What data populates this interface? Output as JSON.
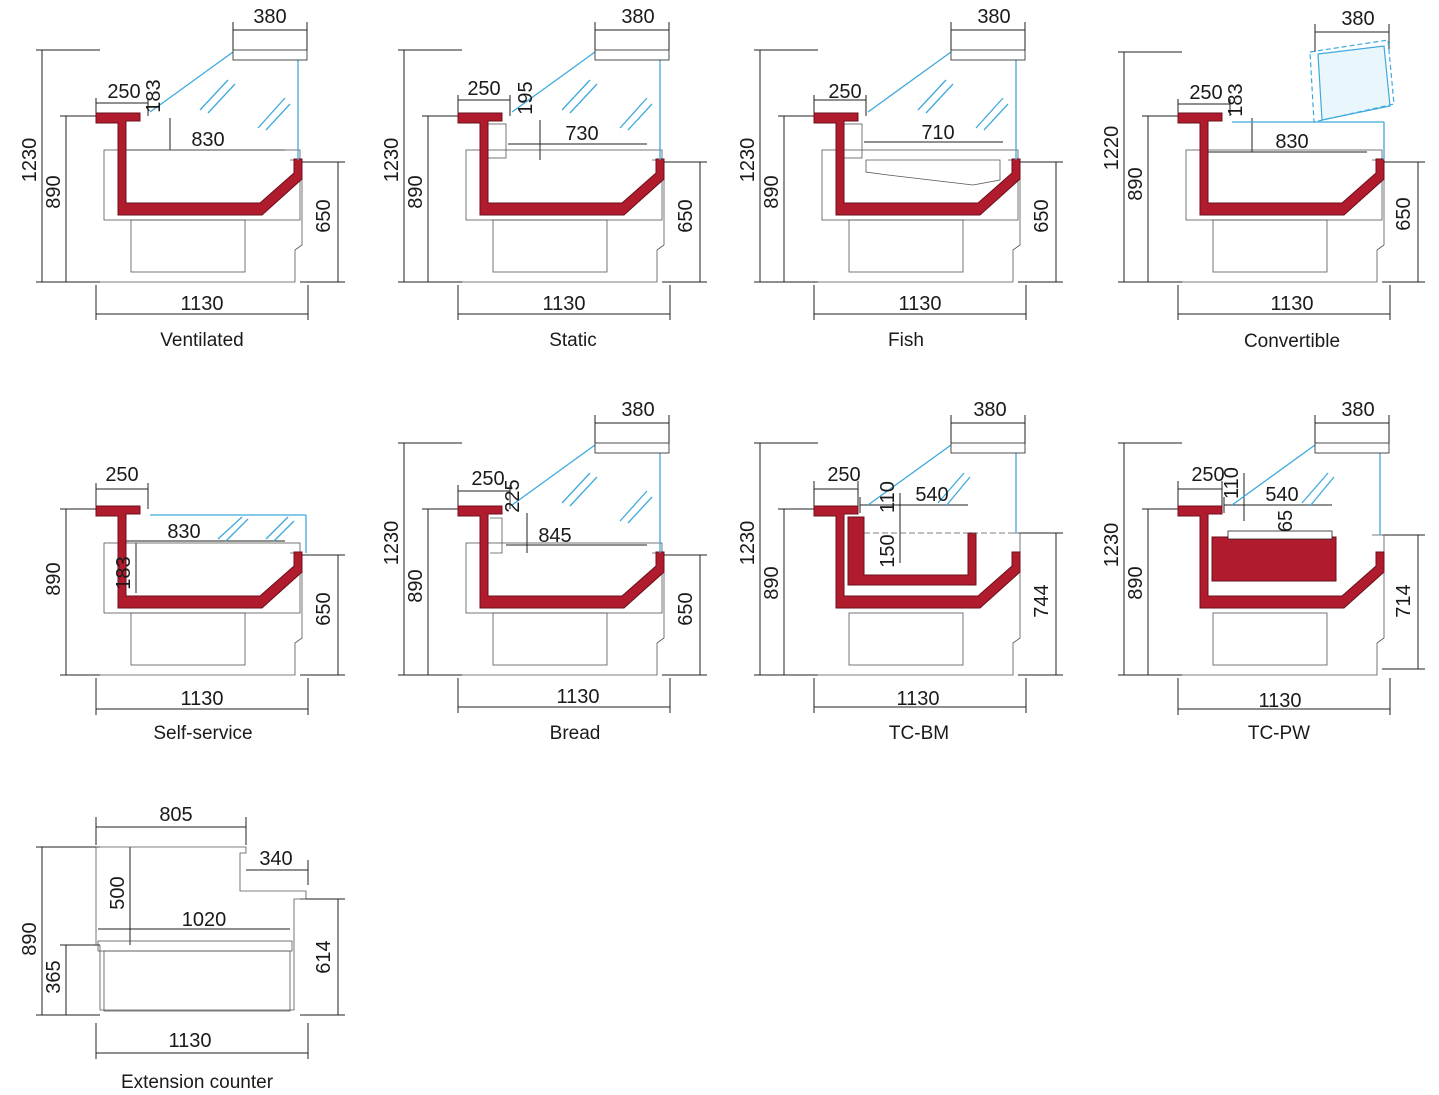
{
  "colors": {
    "tub": "#b01c2e",
    "glass": "#3fa9dc",
    "line": "#222222"
  },
  "panels": [
    {
      "caption": "Ventilated",
      "dims": {
        "top": "380",
        "shelf": "250",
        "height_a": "183",
        "inner": "830",
        "total_h": "1230",
        "counter_h": "890",
        "rear_h": "650",
        "width": "1130"
      }
    },
    {
      "caption": "Static",
      "dims": {
        "top": "380",
        "shelf": "250",
        "height_a": "195",
        "inner": "730",
        "total_h": "1230",
        "counter_h": "890",
        "rear_h": "650",
        "width": "1130"
      }
    },
    {
      "caption": "Fish",
      "dims": {
        "top": "380",
        "shelf": "250",
        "inner": "710",
        "total_h": "1230",
        "counter_h": "890",
        "rear_h": "650",
        "width": "1130"
      }
    },
    {
      "caption": "Convertible",
      "dims": {
        "top": "380",
        "shelf": "250",
        "height_a": "183",
        "inner": "830",
        "total_h": "1220",
        "counter_h": "890",
        "rear_h": "650",
        "width": "1130"
      }
    },
    {
      "caption": "Self-service",
      "dims": {
        "shelf": "250",
        "inner": "830",
        "height_a": "183",
        "counter_h": "890",
        "rear_h": "650",
        "width": "1130"
      }
    },
    {
      "caption": "Bread",
      "dims": {
        "top": "380",
        "shelf": "250",
        "height_a": "225",
        "inner": "845",
        "total_h": "1230",
        "counter_h": "890",
        "rear_h": "650",
        "width": "1130"
      }
    },
    {
      "caption": "TC-BM",
      "dims": {
        "top": "380",
        "shelf": "250",
        "h110": "110",
        "inner": "540",
        "h150": "150",
        "total_h": "1230",
        "counter_h": "890",
        "rear_h": "744",
        "width": "1130"
      }
    },
    {
      "caption": "TC-PW",
      "dims": {
        "top": "380",
        "shelf": "250",
        "h110": "110",
        "inner": "540",
        "h65": "65",
        "total_h": "1230",
        "counter_h": "890",
        "rear_h": "714",
        "width": "1130"
      }
    },
    {
      "caption": "Extension counter",
      "dims": {
        "top": "805",
        "step": "340",
        "h500": "500",
        "inner": "1020",
        "total_h": "890",
        "low_h": "365",
        "rear_h": "614",
        "width": "1130"
      }
    }
  ]
}
